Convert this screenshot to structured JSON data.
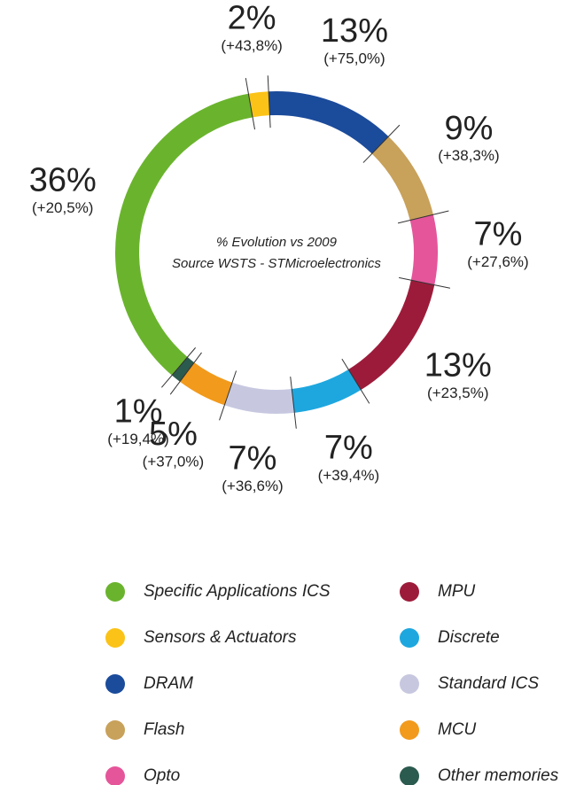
{
  "chart_data": {
    "type": "pie",
    "subtitle": [
      "% Evolution vs 2009",
      "Source WSTS - STMicroelectronics"
    ],
    "categories": [
      "Specific Applications ICS",
      "Sensors & Actuators",
      "DRAM",
      "Flash",
      "Opto",
      "MPU",
      "Discrete",
      "Standard ICS",
      "MCU",
      "Other memories"
    ],
    "values": [
      36,
      2,
      13,
      9,
      7,
      13,
      7,
      7,
      5,
      1
    ],
    "value_labels": [
      "36%",
      "2%",
      "13%",
      "9%",
      "7%",
      "13%",
      "7%",
      "7%",
      "5%",
      "1%"
    ],
    "growth_labels": [
      "(+20,5%)",
      "(+43,8%)",
      "(+75,0%)",
      "(+38,3%)",
      "(+27,6%)",
      "(+23,5%)",
      "(+39,4%)",
      "(+36,6%)",
      "(+37,0%)",
      "(+19,4%)"
    ],
    "colors": [
      "#6ab42d",
      "#fbc318",
      "#1b4b9b",
      "#c8a15a",
      "#e5559a",
      "#9d1b3a",
      "#1ea7df",
      "#c7c8e0",
      "#f29a1c",
      "#2b5a4e"
    ],
    "donut": true
  }
}
